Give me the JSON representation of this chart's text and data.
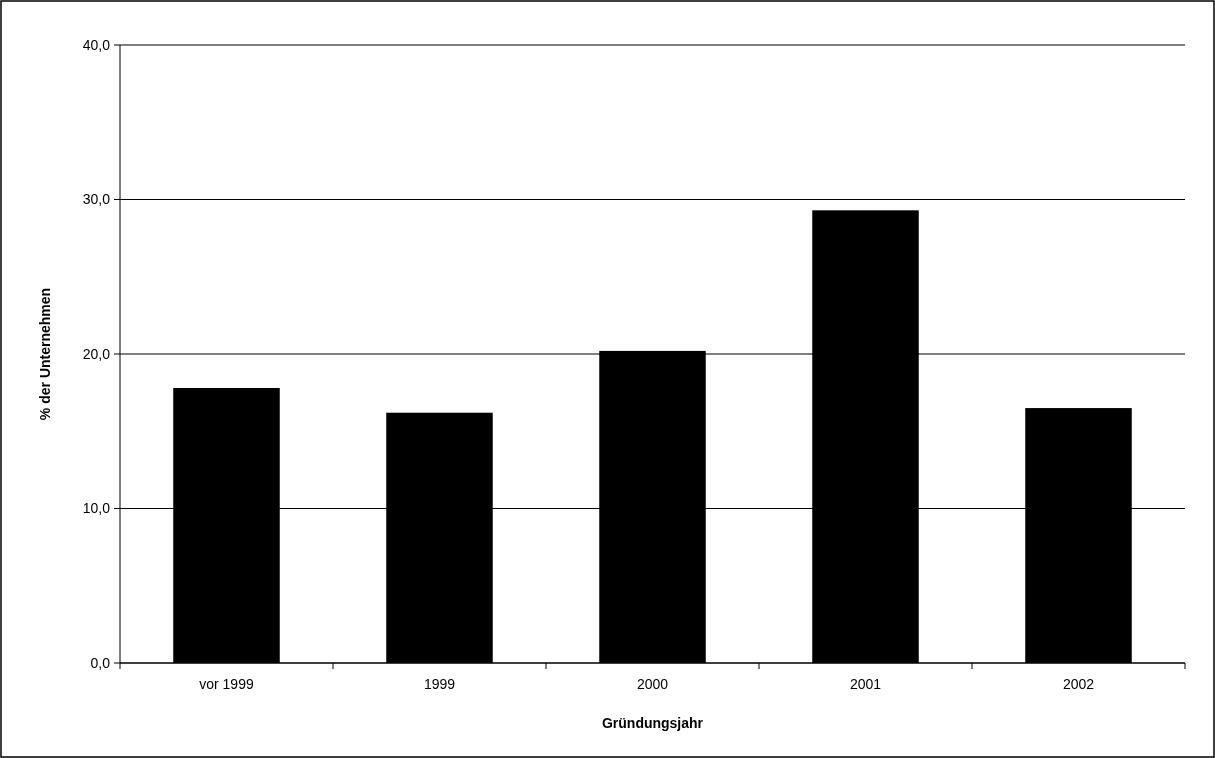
{
  "chart_data": {
    "type": "bar",
    "xlabel": "Gründungsjahr",
    "ylabel": "% der Unternehmen",
    "categories": [
      "vor 1999",
      "1999",
      "2000",
      "2001",
      "2002"
    ],
    "values": [
      17.8,
      16.2,
      20.2,
      29.3,
      16.5
    ],
    "color": "#000000",
    "ylim": [
      0,
      40
    ],
    "yticks": [
      {
        "value": 0,
        "label": "0,0"
      },
      {
        "value": 10,
        "label": "10,0"
      },
      {
        "value": 20,
        "label": "20,0"
      },
      {
        "value": 30,
        "label": "30,0"
      },
      {
        "value": 40,
        "label": "40,0"
      }
    ],
    "grid": "y"
  }
}
